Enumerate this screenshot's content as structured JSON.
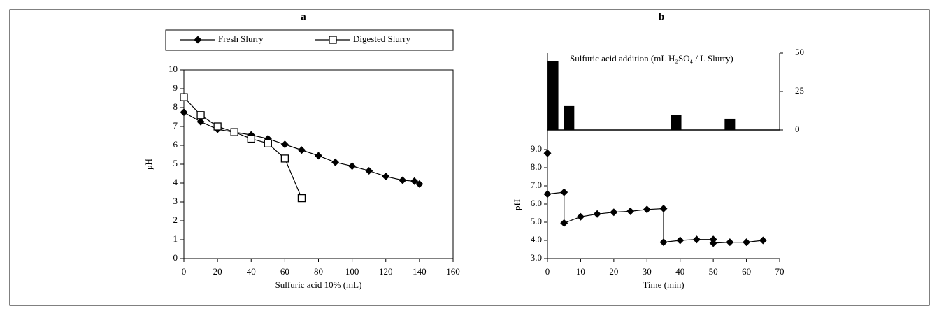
{
  "chart_data": [
    {
      "type": "line",
      "title": "a",
      "xlabel": "Sulfuric acid 10% (mL)",
      "ylabel": "pH",
      "xlim": [
        0,
        160
      ],
      "xticks": [
        0,
        20,
        40,
        60,
        80,
        100,
        120,
        140,
        160
      ],
      "ylim": [
        0,
        10
      ],
      "yticks": [
        0,
        1,
        2,
        3,
        4,
        5,
        6,
        7,
        8,
        9,
        10
      ],
      "legend": "top",
      "series": [
        {
          "name": "Fresh Slurry",
          "color": "#000000",
          "marker": "diamond",
          "x": [
            0,
            10,
            20,
            30,
            40,
            50,
            60,
            70,
            80,
            90,
            100,
            110,
            120,
            130,
            137,
            140
          ],
          "values": [
            7.75,
            7.25,
            6.85,
            6.7,
            6.55,
            6.35,
            6.05,
            5.75,
            5.45,
            5.1,
            4.9,
            4.65,
            4.35,
            4.15,
            4.1,
            3.95
          ]
        },
        {
          "name": "Digested Slurry",
          "color": "#000000",
          "marker": "square",
          "x": [
            0,
            10,
            20,
            30,
            40,
            50,
            60,
            70
          ],
          "values": [
            8.55,
            7.6,
            7.0,
            6.7,
            6.35,
            6.1,
            5.3,
            3.2
          ]
        }
      ]
    },
    {
      "type": "line",
      "title": "b",
      "xlabel": "Time (min)",
      "ylabel": "pH",
      "xlim": [
        0,
        70
      ],
      "xticks": [
        0,
        10,
        20,
        30,
        40,
        50,
        60,
        70
      ],
      "ylim": [
        3,
        9
      ],
      "yticks": [
        {
          "value": 3,
          "label": "3.0"
        },
        {
          "value": 4,
          "label": "4.0"
        },
        {
          "value": 5,
          "label": "5.0"
        },
        {
          "value": 6,
          "label": "6.0"
        },
        {
          "value": 7,
          "label": "7.0"
        },
        {
          "value": 8,
          "label": "8.0"
        },
        {
          "value": 9,
          "label": "9.0"
        }
      ],
      "y2lim": [
        0,
        50
      ],
      "y2ticks": [
        0,
        25,
        50
      ],
      "series": [
        {
          "color": "#000000",
          "marker": "diamond",
          "x": [
            0
          ],
          "values": [
            8.8
          ]
        },
        {
          "color": "#000000",
          "marker": "diamond",
          "x": [
            0,
            5,
            5,
            10,
            15,
            20,
            25,
            30,
            35,
            35,
            40,
            45,
            50,
            50,
            55,
            60,
            65
          ],
          "values": [
            6.55,
            6.65,
            4.95,
            5.3,
            5.45,
            5.55,
            5.6,
            5.7,
            5.75,
            3.9,
            4.0,
            4.05,
            4.05,
            3.85,
            3.9,
            3.9,
            4.0
          ]
        },
        {
          "type": "bar",
          "axis": "y2",
          "name": "Sulfuric acid addition (mL H₂SO₄ / L Slurry)",
          "color": "#000000",
          "x": [
            1.7,
            6.5,
            38.8,
            55
          ],
          "values": [
            45,
            15.5,
            10,
            7.3
          ]
        }
      ]
    }
  ]
}
